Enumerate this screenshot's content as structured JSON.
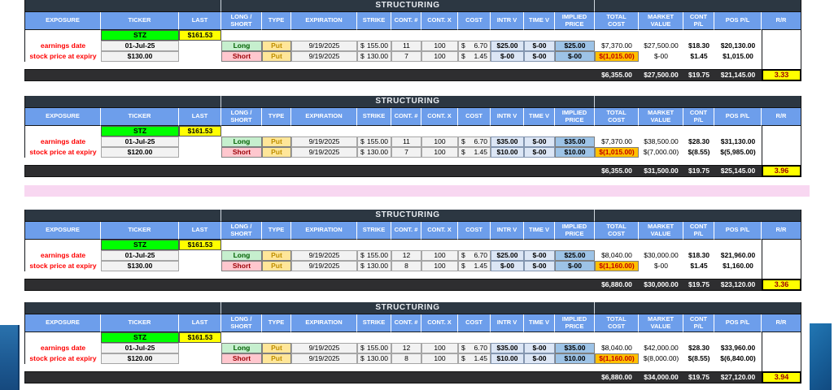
{
  "title": "STRUCTURING",
  "columns": [
    "EXPOSURE",
    "TICKER",
    "LAST",
    "LONG /\nSHORT",
    "TYPE",
    "EXPIRATION",
    "STRIKE",
    "CONT. #",
    "CONT. X",
    "COST",
    "INTR V",
    "TIME V",
    "IMPLIED\nPRICE",
    "TOTAL\nCOST",
    "MARKET\nVALUE",
    "CONT\nP/L",
    "POS P/L",
    "R/R"
  ],
  "row_labels": {
    "earnings_date": "earnings date",
    "expiry_price": "stock price at expiry"
  },
  "colors": {
    "header_blue": "#6d9eeb",
    "dark_bar": "#2c3742",
    "ticker_green": "#00ff00",
    "highlight_yellow": "#ffff00",
    "long_green": "#c6efce",
    "short_pink": "#ffc7ce",
    "put_tan": "#ffe699",
    "light_blue": "#dce6f5",
    "implied_blue": "#9dc3e6",
    "negative_orange": "#ffc000",
    "pink_band": "#f8d7f1",
    "accent_blue_bar": "#1b5e9b"
  },
  "tables": [
    {
      "ticker": "STZ",
      "last": "$161.53",
      "earnings_date": "01-Jul-25",
      "expiry_price": "$130.00",
      "legs": [
        {
          "side": "Long",
          "type": "Put",
          "expiration": "9/19/2025",
          "strike": "$  155.00",
          "cont_n": "11",
          "cont_x": "100",
          "cost": "$      6.70",
          "intr_v": "$25.00",
          "time_v": "$-00",
          "implied": "$25.00",
          "total_cost": "$7,370.00",
          "market_value": "$27,500.00",
          "cont_pl": "$18.30",
          "pos_pl": "$20,130.00"
        },
        {
          "side": "Short",
          "type": "Put",
          "expiration": "9/19/2025",
          "strike": "$  130.00",
          "cont_n": "7",
          "cont_x": "100",
          "cost": "$      1.45",
          "intr_v": "$-00",
          "time_v": "$-00",
          "implied": "$-00",
          "total_cost": "$(1,015.00)",
          "market_value": "$-00",
          "cont_pl": "$1.45",
          "pos_pl": "$1,015.00"
        }
      ],
      "totals": {
        "total_cost": "$6,355.00",
        "market_value": "$27,500.00",
        "cont_pl": "$19.75",
        "pos_pl": "$21,145.00",
        "rr": "3.33"
      }
    },
    {
      "ticker": "STZ",
      "last": "$161.53",
      "earnings_date": "01-Jul-25",
      "expiry_price": "$120.00",
      "legs": [
        {
          "side": "Long",
          "type": "Put",
          "expiration": "9/19/2025",
          "strike": "$  155.00",
          "cont_n": "11",
          "cont_x": "100",
          "cost": "$      6.70",
          "intr_v": "$35.00",
          "time_v": "$-00",
          "implied": "$35.00",
          "total_cost": "$7,370.00",
          "market_value": "$38,500.00",
          "cont_pl": "$28.30",
          "pos_pl": "$31,130.00"
        },
        {
          "side": "Short",
          "type": "Put",
          "expiration": "9/19/2025",
          "strike": "$  130.00",
          "cont_n": "7",
          "cont_x": "100",
          "cost": "$      1.45",
          "intr_v": "$10.00",
          "time_v": "$-00",
          "implied": "$10.00",
          "total_cost": "$(1,015.00)",
          "market_value": "$(7,000.00)",
          "cont_pl": "$(8.55)",
          "pos_pl": "$(5,985.00)"
        }
      ],
      "totals": {
        "total_cost": "$6,355.00",
        "market_value": "$31,500.00",
        "cont_pl": "$19.75",
        "pos_pl": "$25,145.00",
        "rr": "3.96"
      }
    },
    {
      "ticker": "STZ",
      "last": "$161.53",
      "earnings_date": "01-Jul-25",
      "expiry_price": "$130.00",
      "legs": [
        {
          "side": "Long",
          "type": "Put",
          "expiration": "9/19/2025",
          "strike": "$  155.00",
          "cont_n": "12",
          "cont_x": "100",
          "cost": "$      6.70",
          "intr_v": "$25.00",
          "time_v": "$-00",
          "implied": "$25.00",
          "total_cost": "$8,040.00",
          "market_value": "$30,000.00",
          "cont_pl": "$18.30",
          "pos_pl": "$21,960.00"
        },
        {
          "side": "Short",
          "type": "Put",
          "expiration": "9/19/2025",
          "strike": "$  130.00",
          "cont_n": "8",
          "cont_x": "100",
          "cost": "$      1.45",
          "intr_v": "$-00",
          "time_v": "$-00",
          "implied": "$-00",
          "total_cost": "$(1,160.00)",
          "market_value": "$-00",
          "cont_pl": "$1.45",
          "pos_pl": "$1,160.00"
        }
      ],
      "totals": {
        "total_cost": "$6,880.00",
        "market_value": "$30,000.00",
        "cont_pl": "$19.75",
        "pos_pl": "$23,120.00",
        "rr": "3.36"
      }
    },
    {
      "ticker": "STZ",
      "last": "$161.53",
      "earnings_date": "01-Jul-25",
      "expiry_price": "$120.00",
      "legs": [
        {
          "side": "Long",
          "type": "Put",
          "expiration": "9/19/2025",
          "strike": "$  155.00",
          "cont_n": "12",
          "cont_x": "100",
          "cost": "$      6.70",
          "intr_v": "$35.00",
          "time_v": "$-00",
          "implied": "$35.00",
          "total_cost": "$8,040.00",
          "market_value": "$42,000.00",
          "cont_pl": "$28.30",
          "pos_pl": "$33,960.00"
        },
        {
          "side": "Short",
          "type": "Put",
          "expiration": "9/19/2025",
          "strike": "$  130.00",
          "cont_n": "8",
          "cont_x": "100",
          "cost": "$      1.45",
          "intr_v": "$10.00",
          "time_v": "$-00",
          "implied": "$10.00",
          "total_cost": "$(1,160.00)",
          "market_value": "$(8,000.00)",
          "cont_pl": "$(8.55)",
          "pos_pl": "$(6,840.00)"
        }
      ],
      "totals": {
        "total_cost": "$6,880.00",
        "market_value": "$34,000.00",
        "cont_pl": "$19.75",
        "pos_pl": "$27,120.00",
        "rr": "3.94"
      }
    }
  ]
}
